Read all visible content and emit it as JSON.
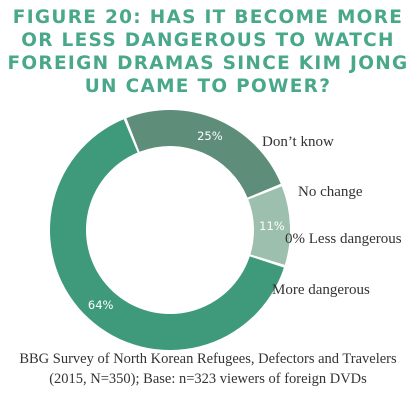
{
  "title_lines": [
    "FIGURE 20: HAS IT BECOME MORE",
    "OR LESS DANGEROUS TO WATCH",
    "FOREIGN DRAMAS SINCE KIM JONG",
    "UN CAME TO POWER?"
  ],
  "source_lines": [
    "BBG Survey of North Korean Refugees, Defectors and Travelers",
    "(2015, N=350); Base: n=323 viewers of foreign DVDs"
  ],
  "colors": {
    "title": "#4aa88a",
    "more_dangerous": "#3f9a7b",
    "dont_know": "#5e8e79",
    "no_change": "#9cbfae",
    "less_dangerous": "#d9e6e0"
  },
  "chart_data": {
    "type": "pie",
    "donut": true,
    "title": "FIGURE 20: HAS IT BECOME MORE OR LESS DANGEROUS TO WATCH FOREIGN DRAMAS SINCE KIM JONG UN CAME TO POWER?",
    "slices": [
      {
        "category": "Don’t know",
        "value": 25,
        "label": "25%",
        "color": "#5e8e79"
      },
      {
        "category": "No change",
        "value": 11,
        "label": "11%",
        "color": "#9cbfae"
      },
      {
        "category": "Less dangerous",
        "value": 0,
        "label": "0%",
        "color": "#d9e6e0"
      },
      {
        "category": "More dangerous",
        "value": 64,
        "label": "64%",
        "color": "#3f9a7b"
      }
    ],
    "legend_texts": [
      "Don’t know",
      "No change",
      "0% Less dangerous",
      "More dangerous"
    ],
    "legend_placement": "right"
  }
}
